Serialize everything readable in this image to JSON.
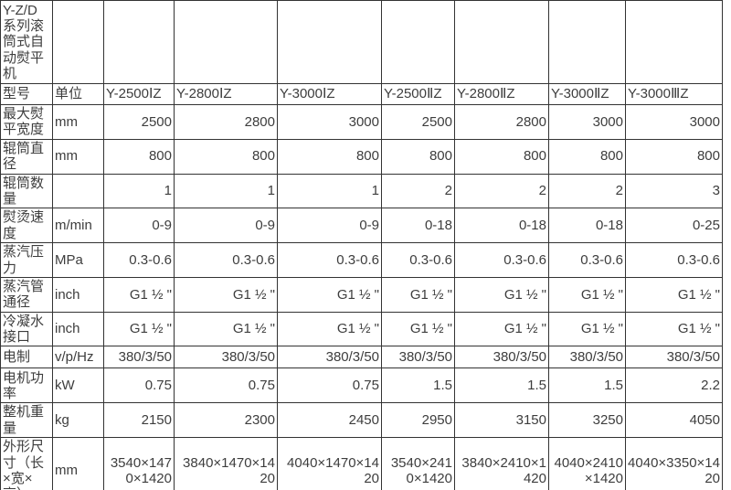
{
  "title_cell": "Y-Z/D系列滚筒式自动熨平机",
  "header": {
    "model_label": "型号",
    "unit_label": "单位",
    "models": [
      "Y-2500ⅠZ",
      "Y-2800ⅠZ",
      "Y-3000ⅠZ",
      "Y-2500ⅡZ",
      "Y-2800ⅡZ",
      "Y-3000ⅡZ",
      "Y-3000ⅢZ"
    ]
  },
  "rows": [
    {
      "label": "最大熨平宽度",
      "unit": "mm",
      "values": [
        "2500",
        "2800",
        "3000",
        "2500",
        "2800",
        "3000",
        "3000"
      ]
    },
    {
      "label": "辊筒直径",
      "unit": "mm",
      "values": [
        "800",
        "800",
        "800",
        "800",
        "800",
        "800",
        "800"
      ]
    },
    {
      "label": "辊筒数量",
      "unit": "",
      "values": [
        "1",
        "1",
        "1",
        "2",
        "2",
        "2",
        "3"
      ]
    },
    {
      "label": "熨烫速度",
      "unit": "m/min",
      "values": [
        "0-9",
        "0-9",
        "0-9",
        "0-18",
        "0-18",
        "0-18",
        "0-25"
      ]
    },
    {
      "label": "蒸汽压力",
      "unit": "MPa",
      "values": [
        "0.3-0.6",
        "0.3-0.6",
        "0.3-0.6",
        "0.3-0.6",
        "0.3-0.6",
        "0.3-0.6",
        "0.3-0.6"
      ]
    },
    {
      "label": "蒸汽管通径",
      "unit": "inch",
      "values": [
        "G1 ½ \"",
        "G1 ½ \"",
        "G1 ½ \"",
        "G1 ½ \"",
        "G1 ½ \"",
        "G1 ½ \"",
        "G1 ½ \""
      ]
    },
    {
      "label": "冷凝水接口",
      "unit": "inch",
      "values": [
        "G1 ½ \"",
        "G1 ½ \"",
        "G1 ½ \"",
        "G1 ½ \"",
        "G1 ½ \"",
        "G1 ½ \"",
        "G1 ½ \""
      ]
    },
    {
      "label": "电制",
      "unit": "v/p/Hz",
      "values": [
        "380/3/50",
        "380/3/50",
        "380/3/50",
        "380/3/50",
        "380/3/50",
        "380/3/50",
        "380/3/50"
      ]
    },
    {
      "label": "电机功率",
      "unit": "kW",
      "values": [
        "0.75",
        "0.75",
        "0.75",
        "1.5",
        "1.5",
        "1.5",
        "2.2"
      ]
    },
    {
      "label": "整机重量",
      "unit": "kg",
      "values": [
        "2150",
        "2300",
        "2450",
        "2950",
        "3150",
        "3250",
        "4050"
      ]
    },
    {
      "label": "外形尺寸（长×宽×高）",
      "unit": "mm",
      "values": [
        "3540×1470×1420",
        "3840×1470×1420",
        "4040×1470×1420",
        "3540×2410×1420",
        "3840×2410×1420",
        "4040×2410×1420",
        "4040×3350×1420"
      ]
    }
  ],
  "colors": {
    "border": "#333333",
    "text": "#3d3d3d",
    "background": "#ffffff"
  }
}
